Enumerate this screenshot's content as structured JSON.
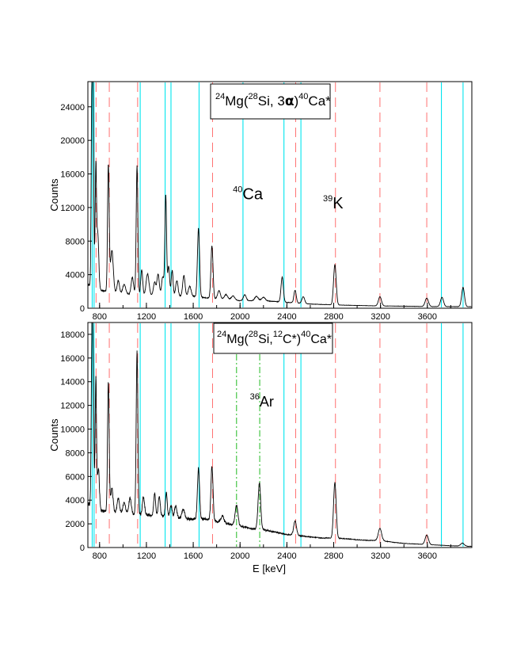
{
  "colors": {
    "spectrum": "#000000",
    "ca_lines": "#00e5ee",
    "k_lines": "#ff7070",
    "ar_lines": "#22bb22"
  },
  "chart_data": [
    {
      "type": "line",
      "xlabel": "",
      "ylabel": "Counts",
      "xlim": [
        700,
        3980
      ],
      "ylim": [
        0,
        27000
      ],
      "x_ticks": [
        800,
        1200,
        1600,
        2000,
        2400,
        2800,
        3200,
        3600
      ],
      "y_ticks": [
        0,
        4000,
        8000,
        12000,
        16000,
        20000,
        24000
      ],
      "reaction_label": {
        "a": "24",
        "b": "Mg(",
        "c": "28",
        "d": "Si, 3",
        "e": "α",
        "f": ")",
        "g": "40",
        "h": "Ca*"
      },
      "annotations": [
        {
          "sup": "40",
          "text": "Ca",
          "x": 2020,
          "y": 13000
        },
        {
          "sup": "39",
          "text": "K",
          "x": 2790,
          "y": 11900
        }
      ],
      "lines": {
        "ca": [
          737,
          753,
          1147,
          1360,
          1410,
          1650,
          2025,
          2375,
          2520,
          3720,
          3905
        ],
        "k": [
          770,
          883,
          1125,
          1765,
          2475,
          2815,
          3195,
          3595
        ],
        "ar": []
      },
      "peaks": [
        {
          "x": 735,
          "y": 24500,
          "w": 6
        },
        {
          "x": 745,
          "y": 16500,
          "w": 6
        },
        {
          "x": 768,
          "y": 14300,
          "w": 6
        },
        {
          "x": 785,
          "y": 6500,
          "w": 8
        },
        {
          "x": 875,
          "y": 15000,
          "w": 7
        },
        {
          "x": 905,
          "y": 5000,
          "w": 12
        },
        {
          "x": 960,
          "y": 1500,
          "w": 10
        },
        {
          "x": 1010,
          "y": 1200,
          "w": 12
        },
        {
          "x": 1080,
          "y": 2000,
          "w": 10
        },
        {
          "x": 1120,
          "y": 15300,
          "w": 7
        },
        {
          "x": 1160,
          "y": 3000,
          "w": 8
        },
        {
          "x": 1210,
          "y": 2500,
          "w": 12
        },
        {
          "x": 1270,
          "y": 1500,
          "w": 10
        },
        {
          "x": 1300,
          "y": 2500,
          "w": 10
        },
        {
          "x": 1340,
          "y": 2200,
          "w": 10
        },
        {
          "x": 1365,
          "y": 12000,
          "w": 7
        },
        {
          "x": 1390,
          "y": 3500,
          "w": 8
        },
        {
          "x": 1420,
          "y": 3000,
          "w": 8
        },
        {
          "x": 1460,
          "y": 1800,
          "w": 10
        },
        {
          "x": 1520,
          "y": 2500,
          "w": 10
        },
        {
          "x": 1570,
          "y": 1200,
          "w": 12
        },
        {
          "x": 1645,
          "y": 8200,
          "w": 9
        },
        {
          "x": 1760,
          "y": 6300,
          "w": 9
        },
        {
          "x": 1820,
          "y": 1000,
          "w": 12
        },
        {
          "x": 1880,
          "y": 600,
          "w": 15
        },
        {
          "x": 1940,
          "y": 500,
          "w": 15
        },
        {
          "x": 2040,
          "y": 700,
          "w": 12
        },
        {
          "x": 2140,
          "y": 500,
          "w": 15
        },
        {
          "x": 2200,
          "y": 400,
          "w": 15
        },
        {
          "x": 2360,
          "y": 3000,
          "w": 10
        },
        {
          "x": 2470,
          "y": 1500,
          "w": 10
        },
        {
          "x": 2540,
          "y": 800,
          "w": 12
        },
        {
          "x": 2810,
          "y": 4800,
          "w": 11
        },
        {
          "x": 3195,
          "y": 1100,
          "w": 13
        },
        {
          "x": 3595,
          "y": 1000,
          "w": 14
        },
        {
          "x": 3725,
          "y": 1100,
          "w": 13
        },
        {
          "x": 3905,
          "y": 2300,
          "w": 12
        }
      ],
      "baseline": [
        [
          700,
          2800
        ],
        [
          760,
          2600
        ],
        [
          820,
          2100
        ],
        [
          900,
          1900
        ],
        [
          1000,
          1700
        ],
        [
          1200,
          1600
        ],
        [
          1400,
          1500
        ],
        [
          1600,
          1400
        ],
        [
          1800,
          1100
        ],
        [
          2000,
          900
        ],
        [
          2200,
          900
        ],
        [
          2400,
          700
        ],
        [
          2600,
          500
        ],
        [
          2800,
          400
        ],
        [
          3000,
          330
        ],
        [
          3200,
          270
        ],
        [
          3400,
          250
        ],
        [
          3600,
          200
        ],
        [
          3800,
          200
        ],
        [
          3980,
          180
        ]
      ]
    },
    {
      "type": "line",
      "xlabel": "E [keV]",
      "ylabel": "Counts",
      "xlim": [
        700,
        3980
      ],
      "ylim": [
        0,
        19000
      ],
      "x_ticks": [
        800,
        1200,
        1600,
        2000,
        2400,
        2800,
        3200,
        3600
      ],
      "y_ticks": [
        0,
        2000,
        4000,
        6000,
        8000,
        10000,
        12000,
        14000,
        16000,
        18000
      ],
      "reaction_label": {
        "a": "24",
        "b": "Mg(",
        "c": "28",
        "d": "Si,",
        "e": "12",
        "f": "C*)",
        "g": "40",
        "h": "Ca*"
      },
      "annotations": [
        {
          "sup": "36",
          "text": "Ar",
          "x": 2165,
          "y": 11900
        }
      ],
      "lines": {
        "ca": [
          737,
          753,
          1147,
          1360,
          1410,
          1650,
          2375,
          2520,
          3720,
          3905
        ],
        "k": [
          770,
          883,
          1125,
          1765,
          2475,
          2815,
          3195,
          3595
        ],
        "ar": [
          1970,
          2168
        ]
      },
      "peaks": [
        {
          "x": 735,
          "y": 13800,
          "w": 6
        },
        {
          "x": 745,
          "y": 10000,
          "w": 6
        },
        {
          "x": 768,
          "y": 11000,
          "w": 6
        },
        {
          "x": 790,
          "y": 3500,
          "w": 8
        },
        {
          "x": 875,
          "y": 10900,
          "w": 7
        },
        {
          "x": 905,
          "y": 2000,
          "w": 10
        },
        {
          "x": 960,
          "y": 1200,
          "w": 10
        },
        {
          "x": 1010,
          "y": 1000,
          "w": 10
        },
        {
          "x": 1060,
          "y": 1300,
          "w": 10
        },
        {
          "x": 1120,
          "y": 13700,
          "w": 7
        },
        {
          "x": 1175,
          "y": 1500,
          "w": 9
        },
        {
          "x": 1270,
          "y": 1800,
          "w": 8
        },
        {
          "x": 1310,
          "y": 1700,
          "w": 8
        },
        {
          "x": 1370,
          "y": 2000,
          "w": 8
        },
        {
          "x": 1410,
          "y": 1000,
          "w": 9
        },
        {
          "x": 1450,
          "y": 1000,
          "w": 10
        },
        {
          "x": 1515,
          "y": 800,
          "w": 12
        },
        {
          "x": 1645,
          "y": 4300,
          "w": 9
        },
        {
          "x": 1760,
          "y": 4600,
          "w": 9
        },
        {
          "x": 1850,
          "y": 600,
          "w": 12
        },
        {
          "x": 1970,
          "y": 1700,
          "w": 12
        },
        {
          "x": 2165,
          "y": 3900,
          "w": 11
        },
        {
          "x": 2470,
          "y": 1200,
          "w": 12
        },
        {
          "x": 2810,
          "y": 4700,
          "w": 11
        },
        {
          "x": 3195,
          "y": 1000,
          "w": 14
        },
        {
          "x": 3595,
          "y": 800,
          "w": 14
        },
        {
          "x": 3900,
          "y": 250,
          "w": 15
        }
      ],
      "baseline": [
        [
          700,
          3700
        ],
        [
          760,
          3400
        ],
        [
          820,
          3100
        ],
        [
          900,
          3000
        ],
        [
          1000,
          2900
        ],
        [
          1150,
          2800
        ],
        [
          1300,
          2700
        ],
        [
          1450,
          2500
        ],
        [
          1600,
          2400
        ],
        [
          1700,
          2400
        ],
        [
          1800,
          2200
        ],
        [
          1900,
          2000
        ],
        [
          2000,
          1800
        ],
        [
          2100,
          1600
        ],
        [
          2200,
          1500
        ],
        [
          2300,
          1300
        ],
        [
          2400,
          1100
        ],
        [
          2500,
          1000
        ],
        [
          2600,
          900
        ],
        [
          2700,
          800
        ],
        [
          2800,
          800
        ],
        [
          2900,
          750
        ],
        [
          3000,
          650
        ],
        [
          3100,
          600
        ],
        [
          3200,
          600
        ],
        [
          3300,
          450
        ],
        [
          3400,
          350
        ],
        [
          3500,
          300
        ],
        [
          3600,
          250
        ],
        [
          3700,
          200
        ],
        [
          3800,
          150
        ],
        [
          3980,
          100
        ]
      ]
    }
  ]
}
